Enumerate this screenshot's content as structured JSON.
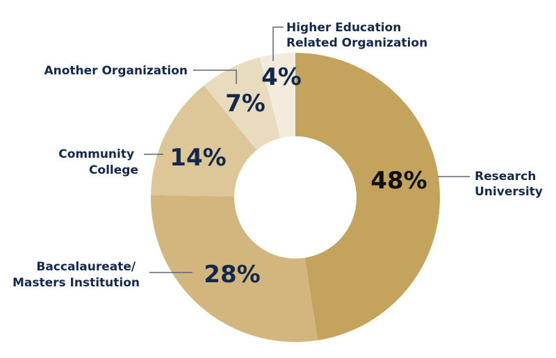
{
  "chart_data": {
    "type": "pie",
    "variant": "donut",
    "title": "",
    "categories": [
      "Research University",
      "Baccalaureate/ Masters Institution",
      "Community College",
      "Another Organization",
      "Higher Education Related Organization"
    ],
    "values": [
      48,
      28,
      14,
      7,
      4
    ],
    "unit": "%",
    "slices": [
      {
        "label_lines": [
          "Research",
          "University"
        ],
        "value": 48,
        "value_label": "48%",
        "color": "#C4A35D",
        "value_color": "#111111"
      },
      {
        "label_lines": [
          "Baccalaureate/",
          "Masters Institution"
        ],
        "value": 28,
        "value_label": "28%",
        "color": "#D2B67E",
        "value_color": "#13294B"
      },
      {
        "label_lines": [
          "Community",
          "College"
        ],
        "value": 14,
        "value_label": "14%",
        "color": "#DDC799",
        "value_color": "#13294B"
      },
      {
        "label_lines": [
          "Another Organization"
        ],
        "value": 7,
        "value_label": "7%",
        "color": "#E9DCBE",
        "value_color": "#13294B"
      },
      {
        "label_lines": [
          "Higher Education",
          "Related Organization"
        ],
        "value": 4,
        "value_label": "4%",
        "color": "#F3ECDC",
        "value_color": "#13294B"
      }
    ],
    "legend_position": "callout labels",
    "start_angle_deg": 0,
    "direction": "clockwise"
  },
  "colors": {
    "label_text": "#13294B",
    "leader_line": "#5A6478",
    "background": "#FFFFFF"
  }
}
